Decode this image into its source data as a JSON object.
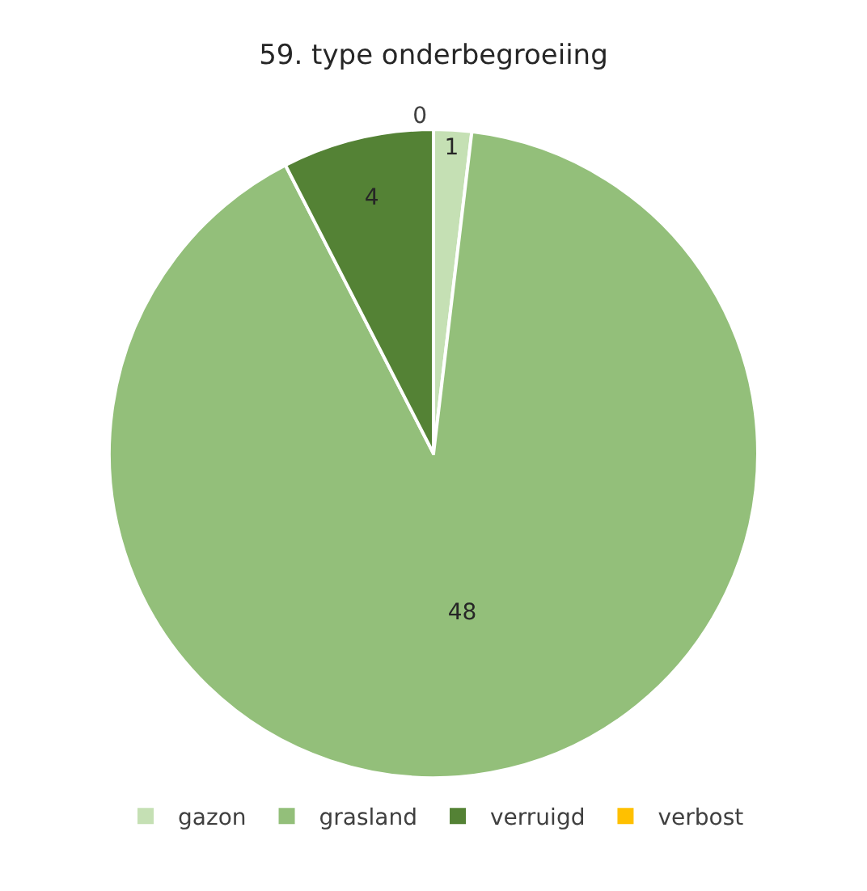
{
  "chart_data": {
    "type": "pie",
    "title": "59. type onderbegroeiing",
    "categories": [
      "gazon",
      "grasland",
      "verruigd",
      "verbost"
    ],
    "values": [
      1,
      48,
      4,
      0
    ],
    "colors": [
      "#c5e0b4",
      "#93bf7a",
      "#548235",
      "#ffc000"
    ],
    "value_labels": [
      "1",
      "48",
      "4",
      "0"
    ],
    "legend": "bottom"
  }
}
